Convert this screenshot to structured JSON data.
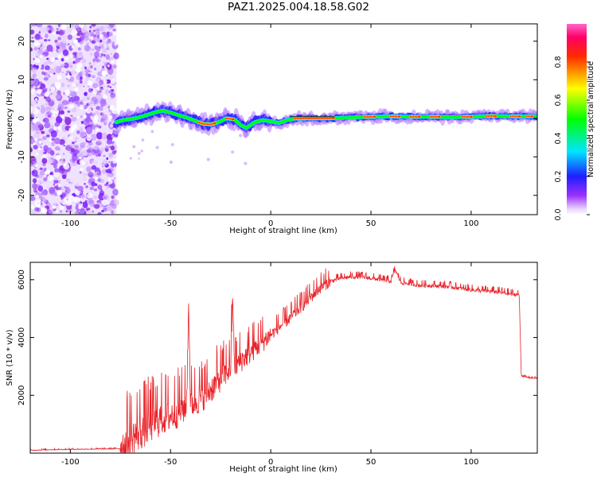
{
  "title": "PAZ1.2025.004.18.58.G02",
  "colors": {
    "snr_line": "#e8242a",
    "ridge": "#00c800",
    "noise": "#8a2be2"
  },
  "chart_data": [
    {
      "type": "heatmap",
      "title": "PAZ1.2025.004.18.58.G02",
      "xlabel": "Height of straight line (km)",
      "ylabel": "Frequency (Hz)",
      "xlim": [
        -120,
        133
      ],
      "ylim": [
        -25,
        24.5
      ],
      "x_ticks": [
        -100,
        -50,
        0,
        50,
        100
      ],
      "x_tick_labels": [
        "-100",
        "-50",
        "0",
        "50",
        "100"
      ],
      "y_ticks": [
        -20,
        -10,
        0,
        10,
        20
      ],
      "y_tick_labels": [
        "-20",
        "-10",
        "0",
        "10",
        "20"
      ],
      "grid": false,
      "colorbar": {
        "label": "Normalized spectral amplitude",
        "range": [
          0,
          1
        ],
        "ticks": [
          0.0,
          0.2,
          0.4,
          0.6,
          0.8
        ],
        "tick_labels": [
          "0.0",
          "0.2",
          "0.4",
          "0.6",
          "0.8"
        ],
        "colormap": "rainbow (white-violet-blue-cyan-green-yellow-red-magenta)"
      },
      "noise_region_x": [
        -120,
        -77
      ],
      "ridge": [
        {
          "x": -77,
          "y": -1.0
        },
        {
          "x": -74,
          "y": -0.5
        },
        {
          "x": -70,
          "y": -0.2
        },
        {
          "x": -66,
          "y": 0.2
        },
        {
          "x": -62,
          "y": 0.8
        },
        {
          "x": -58,
          "y": 1.5
        },
        {
          "x": -54,
          "y": 2.0
        },
        {
          "x": -50,
          "y": 1.5
        },
        {
          "x": -46,
          "y": 0.8
        },
        {
          "x": -42,
          "y": 0.2
        },
        {
          "x": -38,
          "y": -0.6
        },
        {
          "x": -34,
          "y": -1.4
        },
        {
          "x": -30,
          "y": -1.6
        },
        {
          "x": -26,
          "y": -1.0
        },
        {
          "x": -22,
          "y": 0.0
        },
        {
          "x": -18,
          "y": -0.3
        },
        {
          "x": -15,
          "y": -1.8
        },
        {
          "x": -12,
          "y": -2.5
        },
        {
          "x": -8,
          "y": -1.0
        },
        {
          "x": -4,
          "y": -0.5
        },
        {
          "x": 0,
          "y": -0.8
        },
        {
          "x": 4,
          "y": -1.2
        },
        {
          "x": 8,
          "y": -0.5
        },
        {
          "x": 12,
          "y": -0.1
        },
        {
          "x": 20,
          "y": 0.0
        },
        {
          "x": 30,
          "y": 0.0
        },
        {
          "x": 40,
          "y": 0.2
        },
        {
          "x": 50,
          "y": 0.4
        },
        {
          "x": 60,
          "y": 0.5
        },
        {
          "x": 70,
          "y": 0.4
        },
        {
          "x": 80,
          "y": 0.4
        },
        {
          "x": 90,
          "y": 0.3
        },
        {
          "x": 100,
          "y": 0.4
        },
        {
          "x": 110,
          "y": 0.6
        },
        {
          "x": 120,
          "y": 0.5
        },
        {
          "x": 133,
          "y": 0.5
        }
      ]
    },
    {
      "type": "line",
      "xlabel": "Height of straight line (km)",
      "ylabel": "SNR (10 * v/v)",
      "xlim": [
        -120,
        133
      ],
      "ylim": [
        0,
        6600
      ],
      "x_ticks": [
        -100,
        -50,
        0,
        50,
        100
      ],
      "x_tick_labels": [
        "-100",
        "-50",
        "0",
        "50",
        "100"
      ],
      "y_ticks": [
        2000,
        4000,
        6000
      ],
      "y_tick_labels": [
        "2000",
        "4000",
        "6000"
      ],
      "grid": false,
      "series": [
        {
          "color": "#e8242a",
          "x": [
            -120,
            -110,
            -100,
            -90,
            -80,
            -75,
            -72,
            -70,
            -65,
            -60,
            -55,
            -50,
            -45,
            -42,
            -41,
            -40,
            -35,
            -30,
            -25,
            -20,
            -19,
            -18,
            -15,
            -10,
            -5,
            0,
            5,
            10,
            15,
            20,
            25,
            30,
            35,
            40,
            45,
            50,
            55,
            60,
            62,
            65,
            70,
            75,
            80,
            85,
            90,
            95,
            100,
            105,
            110,
            115,
            120,
            124,
            125,
            126,
            130,
            133
          ],
          "y": [
            100,
            120,
            130,
            140,
            150,
            160,
            300,
            500,
            750,
            1000,
            1200,
            1300,
            1500,
            1650,
            5250,
            1700,
            1900,
            2200,
            2600,
            2950,
            5400,
            3000,
            3200,
            3500,
            3800,
            4100,
            4400,
            4700,
            5050,
            5400,
            5750,
            5950,
            6050,
            6100,
            6100,
            6050,
            6000,
            5950,
            6350,
            5900,
            5850,
            5800,
            5800,
            5780,
            5750,
            5700,
            5650,
            5620,
            5600,
            5560,
            5500,
            5480,
            2700,
            2650,
            2600,
            2600
          ]
        }
      ]
    }
  ]
}
